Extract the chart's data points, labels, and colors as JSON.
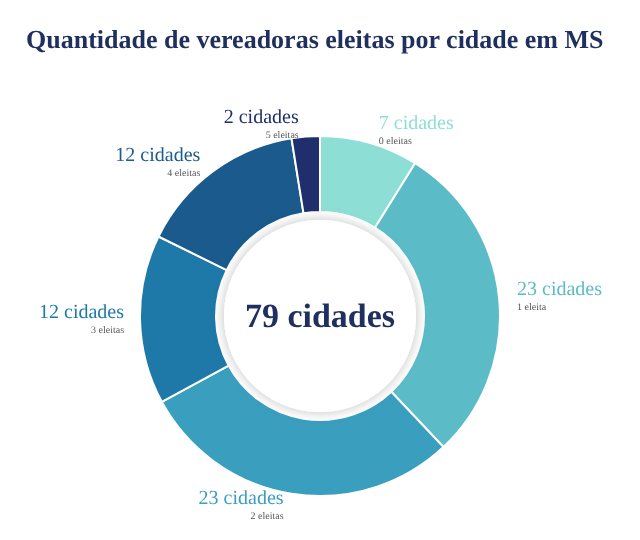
{
  "chart_data": {
    "type": "donut",
    "title": "Quantidade de vereadoras eleitas por cidade em MS",
    "categories": [
      "0 eleitas",
      "1 eleita",
      "2 eleitas",
      "3 eleitas",
      "4 eleitas",
      "5 eleitas"
    ],
    "values": [
      7,
      23,
      23,
      12,
      12,
      2
    ],
    "value_labels": [
      "7 cidades",
      "23 cidades",
      "23 cidades",
      "12 cidades",
      "12 cidades",
      "2 cidades"
    ],
    "colors": [
      "#8ddfd6",
      "#5bbcc8",
      "#3a9ebf",
      "#1e78a8",
      "#1a5a8c",
      "#1f2f6e"
    ],
    "annotations": [
      "79 cidades"
    ],
    "legend": false
  }
}
